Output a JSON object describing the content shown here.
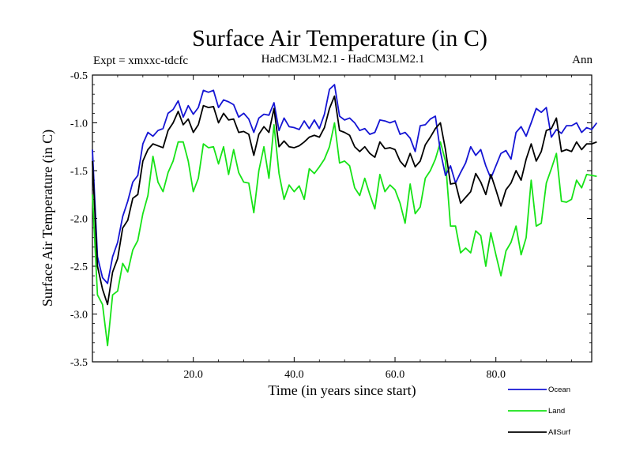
{
  "chart_data": {
    "type": "line",
    "title": "Surface Air Temperature (in C)",
    "left_subtitle": "Expt = xmxxc-tdcfc",
    "center_subtitle": "HadCM3LM2.1 - HadCM3LM2.1",
    "right_subtitle": "Ann",
    "xlabel": "Time (in years since start)",
    "ylabel": "Surface Air Temperature (in C)",
    "xlim": [
      0,
      99
    ],
    "ylim": [
      -3.5,
      -0.5
    ],
    "x_ticks": [
      20,
      40,
      60,
      80
    ],
    "x_tick_labels": [
      "20.0",
      "40.0",
      "60.0",
      "80.0"
    ],
    "y_ticks": [
      -0.5,
      -1.0,
      -1.5,
      -2.0,
      -2.5,
      -3.0,
      -3.5
    ],
    "y_tick_labels": [
      "-0.5",
      "-1.0",
      "-1.5",
      "-2.0",
      "-2.5",
      "-3.0",
      "-3.5"
    ],
    "x_start": 0,
    "legend_placement": "bottom-right",
    "series": [
      {
        "name": "Ocean",
        "color": "#1515d4",
        "values": [
          -1.28,
          -2.4,
          -2.62,
          -2.68,
          -2.4,
          -2.25,
          -1.98,
          -1.82,
          -1.62,
          -1.55,
          -1.22,
          -1.1,
          -1.14,
          -1.08,
          -1.06,
          -0.9,
          -0.86,
          -0.77,
          -0.94,
          -0.82,
          -0.91,
          -0.84,
          -0.66,
          -0.68,
          -0.66,
          -0.84,
          -0.76,
          -0.78,
          -0.81,
          -0.94,
          -0.9,
          -0.96,
          -1.1,
          -0.95,
          -0.91,
          -0.92,
          -0.79,
          -1.08,
          -0.95,
          -1.04,
          -1.05,
          -1.07,
          -0.98,
          -1.06,
          -0.97,
          -1.06,
          -0.91,
          -0.65,
          -0.6,
          -0.93,
          -0.97,
          -0.95,
          -1.0,
          -1.08,
          -1.06,
          -1.12,
          -1.1,
          -0.97,
          -0.98,
          -1.0,
          -0.98,
          -1.12,
          -1.1,
          -1.16,
          -1.3,
          -1.03,
          -1.02,
          -0.96,
          -0.93,
          -1.3,
          -1.55,
          -1.45,
          -1.63,
          -1.52,
          -1.42,
          -1.25,
          -1.34,
          -1.28,
          -1.45,
          -1.58,
          -1.45,
          -1.32,
          -1.29,
          -1.38,
          -1.1,
          -1.04,
          -1.14,
          -1.0,
          -0.85,
          -0.89,
          -0.84,
          -1.15,
          -1.07,
          -1.11,
          -1.03,
          -1.03,
          -1.0,
          -1.1,
          -1.05,
          -1.07,
          -1.0
        ]
      },
      {
        "name": "Land",
        "color": "#17e317",
        "values": [
          -1.75,
          -2.8,
          -2.9,
          -3.33,
          -2.8,
          -2.76,
          -2.47,
          -2.56,
          -2.33,
          -2.23,
          -1.95,
          -1.76,
          -1.35,
          -1.62,
          -1.72,
          -1.52,
          -1.4,
          -1.2,
          -1.2,
          -1.4,
          -1.72,
          -1.58,
          -1.22,
          -1.26,
          -1.25,
          -1.43,
          -1.25,
          -1.54,
          -1.28,
          -1.52,
          -1.62,
          -1.63,
          -1.94,
          -1.5,
          -1.25,
          -1.58,
          -1.02,
          -1.53,
          -1.8,
          -1.65,
          -1.72,
          -1.66,
          -1.8,
          -1.48,
          -1.53,
          -1.46,
          -1.38,
          -1.25,
          -1.0,
          -1.42,
          -1.4,
          -1.45,
          -1.68,
          -1.76,
          -1.58,
          -1.75,
          -1.9,
          -1.54,
          -1.72,
          -1.65,
          -1.7,
          -1.84,
          -2.05,
          -1.64,
          -1.95,
          -1.88,
          -1.58,
          -1.5,
          -1.38,
          -1.2,
          -1.4,
          -2.08,
          -2.08,
          -2.36,
          -2.31,
          -2.36,
          -2.13,
          -2.18,
          -2.5,
          -2.15,
          -2.38,
          -2.6,
          -2.34,
          -2.25,
          -2.08,
          -2.38,
          -2.2,
          -1.6,
          -2.08,
          -2.05,
          -1.63,
          -1.48,
          -1.32,
          -1.82,
          -1.83,
          -1.8,
          -1.6,
          -1.68,
          -1.54,
          -1.55,
          -1.56
        ]
      },
      {
        "name": "AllSurf",
        "color": "#000000",
        "values": [
          -1.4,
          -2.5,
          -2.74,
          -2.9,
          -2.56,
          -2.42,
          -2.1,
          -2.02,
          -1.79,
          -1.75,
          -1.4,
          -1.28,
          -1.22,
          -1.24,
          -1.26,
          -1.08,
          -1.0,
          -0.88,
          -1.02,
          -0.96,
          -1.1,
          -1.02,
          -0.82,
          -0.84,
          -0.83,
          -1.0,
          -0.9,
          -0.97,
          -0.96,
          -1.1,
          -1.09,
          -1.12,
          -1.34,
          -1.12,
          -1.04,
          -1.1,
          -0.85,
          -1.25,
          -1.19,
          -1.25,
          -1.26,
          -1.24,
          -1.2,
          -1.15,
          -1.13,
          -1.15,
          -1.05,
          -0.85,
          -0.72,
          -1.08,
          -1.1,
          -1.13,
          -1.25,
          -1.3,
          -1.25,
          -1.32,
          -1.36,
          -1.2,
          -1.27,
          -1.26,
          -1.28,
          -1.4,
          -1.46,
          -1.32,
          -1.46,
          -1.4,
          -1.23,
          -1.15,
          -1.06,
          -1.0,
          -1.28,
          -1.64,
          -1.63,
          -1.84,
          -1.78,
          -1.72,
          -1.53,
          -1.62,
          -1.75,
          -1.54,
          -1.7,
          -1.87,
          -1.7,
          -1.63,
          -1.5,
          -1.6,
          -1.38,
          -1.22,
          -1.4,
          -1.3,
          -1.08,
          -1.06,
          -0.95,
          -1.3,
          -1.28,
          -1.3,
          -1.2,
          -1.28,
          -1.22,
          -1.22,
          -1.2
        ]
      }
    ]
  }
}
